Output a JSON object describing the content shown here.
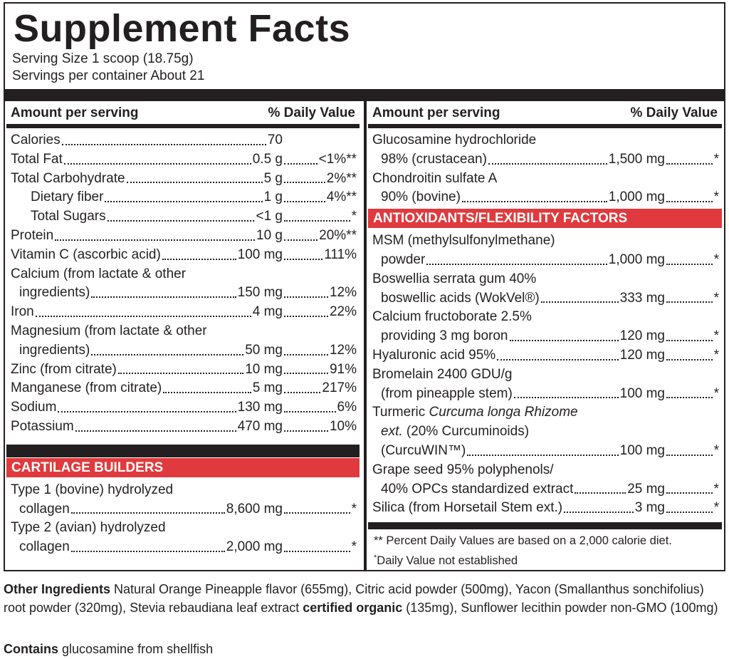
{
  "header": {
    "title": "Supplement Facts",
    "serving_size": "Serving Size 1 scoop (18.75g)",
    "servings_per_container": "Servings per container About 21"
  },
  "left_column": {
    "header": {
      "amount": "Amount per serving",
      "daily_value": "% Daily Value"
    },
    "rows": [
      {
        "lines": [
          "Calories"
        ],
        "amount": "70"
      },
      {
        "lines": [
          "Total Fat"
        ],
        "amount": "0.5 g",
        "dv": "<1%**"
      },
      {
        "lines": [
          "Total Carbohydrate"
        ],
        "amount": "5 g",
        "dv": "2%**"
      },
      {
        "lines": [
          "Dietary fiber"
        ],
        "amount": "1 g",
        "dv": "4%**",
        "indent": true
      },
      {
        "lines": [
          "Total Sugars"
        ],
        "amount": "<1 g",
        "dv": "*",
        "indent": true
      },
      {
        "lines": [
          "Protein"
        ],
        "amount": "10 g",
        "dv": "20%**"
      },
      {
        "lines": [
          "Vitamin C (ascorbic acid)"
        ],
        "amount": "100 mg",
        "dv": "111%"
      },
      {
        "lines": [
          "Calcium (from lactate & other",
          "ingredients)"
        ],
        "amount": "150 mg",
        "dv": "12%"
      },
      {
        "lines": [
          "Iron"
        ],
        "amount": "4 mg",
        "dv": "22%"
      },
      {
        "lines": [
          "Magnesium (from lactate & other",
          "ingredients)"
        ],
        "amount": "50 mg",
        "dv": "12%"
      },
      {
        "lines": [
          "Zinc (from citrate)"
        ],
        "amount": "10 mg",
        "dv": "91%"
      },
      {
        "lines": [
          "Manganese (from citrate)"
        ],
        "amount": "5 mg",
        "dv": "217%"
      },
      {
        "lines": [
          "Sodium"
        ],
        "amount": "130 mg",
        "dv": "6%"
      },
      {
        "lines": [
          "Potassium"
        ],
        "amount": "470 mg",
        "dv": "10%"
      }
    ],
    "sections": [
      {
        "title": "CARTILAGE BUILDERS",
        "rows": [
          {
            "lines": [
              "Type 1 (bovine) hydrolyzed",
              "collagen"
            ],
            "amount": "8,600 mg",
            "dv": "*"
          },
          {
            "lines": [
              "Type 2 (avian) hydrolyzed",
              "collagen"
            ],
            "amount": "2,000 mg",
            "dv": "*"
          }
        ]
      }
    ]
  },
  "right_column": {
    "header": {
      "amount": "Amount per serving",
      "daily_value": "% Daily Value"
    },
    "rows": [
      {
        "lines": [
          "Glucosamine hydrochloride",
          "98% (crustacean)"
        ],
        "amount": "1,500 mg",
        "dv": "*"
      },
      {
        "lines": [
          "Chondroitin sulfate A",
          "90% (bovine)"
        ],
        "amount": "1,000 mg",
        "dv": "*"
      }
    ],
    "sections": [
      {
        "title": "ANTIOXIDANTS/FLEXIBILITY FACTORS",
        "rows": [
          {
            "lines": [
              "MSM (methylsulfonylmethane)",
              "powder"
            ],
            "amount": "1,000 mg",
            "dv": "*"
          },
          {
            "lines": [
              "Boswellia serrata gum 40%",
              "boswellic acids (WokVel®)"
            ],
            "amount": "333 mg",
            "dv": "*"
          },
          {
            "lines": [
              "Calcium fructoborate 2.5%",
              "providing 3 mg boron"
            ],
            "amount": "120 mg",
            "dv": "*"
          },
          {
            "lines": [
              "Hyaluronic acid 95%"
            ],
            "amount": "120 mg",
            "dv": "*"
          },
          {
            "lines": [
              "Bromelain 2400 GDU/g",
              "(from pineapple stem)"
            ],
            "amount": "100 mg",
            "dv": "*"
          },
          {
            "lines": [
              [
                {
                  "text": "Turmeric "
                },
                {
                  "text": "Curcuma longa Rhizome",
                  "italic": true
                }
              ],
              [
                {
                  "text": "ext.",
                  "italic": true
                },
                {
                  "text": " (20% Curcuminoids)"
                }
              ],
              "(CurcuWIN™)"
            ],
            "amount": "100 mg",
            "dv": "*"
          },
          {
            "lines": [
              "Grape seed 95% polyphenols/",
              "40% OPCs standardized extract"
            ],
            "amount": "25 mg",
            "dv": "*"
          },
          {
            "lines": [
              "Silica (from Horsetail Stem ext.)"
            ],
            "amount": "3 mg",
            "dv": "*"
          }
        ]
      }
    ],
    "footnotes": [
      "** Percent Daily Values are based on a 2,000 calorie diet.",
      [
        {
          "text": "*",
          "sup": true
        },
        {
          "text": "Daily Value not established"
        }
      ]
    ]
  },
  "other_ingredients": [
    {
      "text": "Other Ingredients",
      "bold": true
    },
    {
      "text": " Natural Orange Pineapple flavor (655mg), Citric acid powder (500mg), Yacon (Smallanthus sonchifolius) root powder (320mg), Stevia rebaudiana leaf extract "
    },
    {
      "text": "certified organic",
      "bold": true
    },
    {
      "text": " (135mg), Sunflower lecithin powder non-GMO (100mg)"
    }
  ],
  "contains": [
    {
      "text": "Contains",
      "bold": true
    },
    {
      "text": " glucosamine from shellfish"
    }
  ]
}
